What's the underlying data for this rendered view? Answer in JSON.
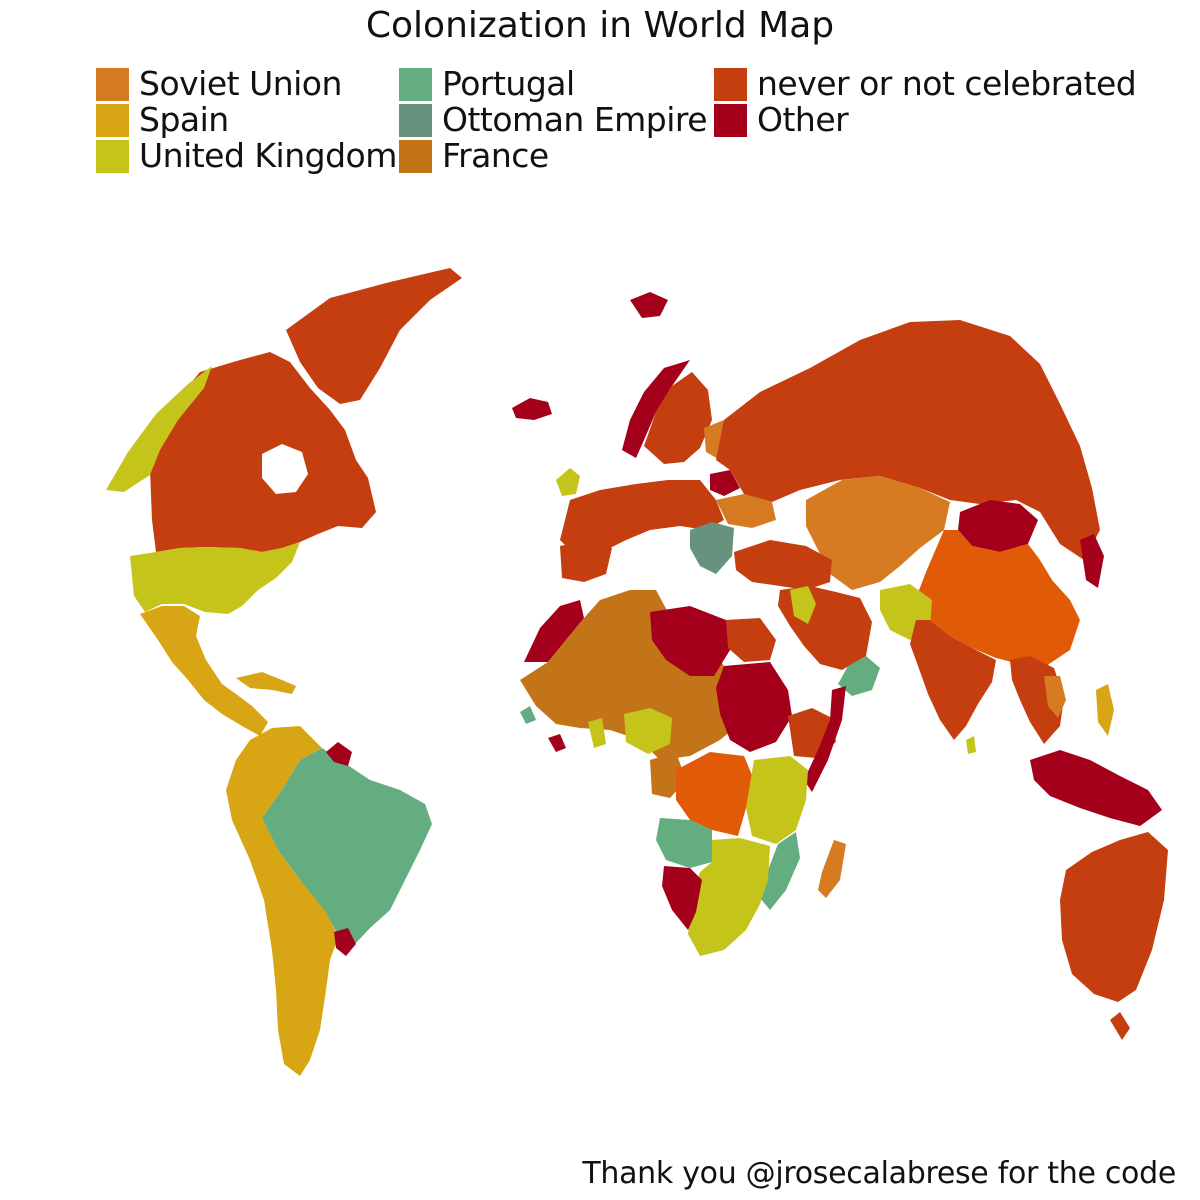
{
  "title": "Colonization in World Map",
  "legend": [
    {
      "label": "Soviet Union",
      "color": "#D67B21"
    },
    {
      "label": "Spain",
      "color": "#D8A514"
    },
    {
      "label": "United Kingdom",
      "color": "#C4C41B"
    },
    {
      "label": "Portugal",
      "color": "#63AD80"
    },
    {
      "label": "Ottoman Empire",
      "color": "#66927E"
    },
    {
      "label": "France",
      "color": "#C47418"
    },
    {
      "label": "never or not celebrated",
      "color": "#C43E10"
    },
    {
      "label": "Other",
      "color": "#A4001B"
    }
  ],
  "extra_colors": {
    "china_orange": "#E05A08",
    "ocean": "#FFFFFF"
  },
  "caption": "Thank you @jrosecalabrese for the code"
}
